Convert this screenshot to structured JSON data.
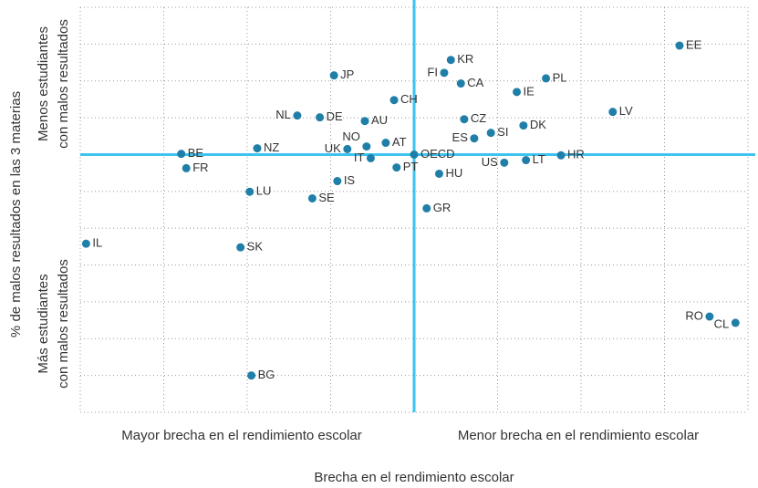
{
  "chart_data": {
    "type": "scatter",
    "xlabel": "Brecha en el rendimiento escolar",
    "x_left_note": "Mayor brecha en el rendimiento escolar",
    "x_right_note": "Menor brecha en el rendimiento escolar",
    "ylabel": "% de malos resultados en las 3 materias",
    "y_top_note": [
      "Menos estudiantes",
      "con malos resultados"
    ],
    "y_bottom_note": [
      "Más estudiantes",
      "con malos resultados"
    ],
    "labels": [
      "EE",
      "KR",
      "FI",
      "CA",
      "PL",
      "JP",
      "IE",
      "CH",
      "LV",
      "NL",
      "DE",
      "AU",
      "CZ",
      "DK",
      "SI",
      "ES",
      "NO",
      "AT",
      "NZ",
      "UK",
      "BE",
      "OECD",
      "HR",
      "IT",
      "LT",
      "US",
      "PT",
      "FR",
      "HU",
      "IS",
      "LU",
      "SE",
      "GR",
      "IL",
      "SK",
      "RO",
      "CL",
      "BG"
    ],
    "x": [
      3.18,
      0.44,
      0.36,
      0.56,
      1.58,
      -0.96,
      1.23,
      -0.24,
      2.38,
      -1.4,
      -1.13,
      -0.59,
      0.6,
      1.31,
      0.92,
      0.72,
      -0.57,
      -0.34,
      -1.88,
      -0.8,
      -2.79,
      0,
      1.76,
      -0.52,
      1.34,
      1.08,
      -0.21,
      -2.73,
      0.3,
      -0.92,
      -1.97,
      -1.22,
      0.15,
      -3.93,
      -2.08,
      3.54,
      3.85,
      -1.95
    ],
    "y": [
      2.96,
      2.57,
      2.22,
      1.93,
      2.07,
      2.15,
      1.7,
      1.48,
      1.16,
      1.06,
      1.01,
      0.91,
      0.96,
      0.79,
      0.59,
      0.44,
      0.22,
      0.32,
      0.17,
      0.15,
      0.02,
      0,
      -0.02,
      -0.1,
      -0.15,
      -0.22,
      -0.35,
      -0.37,
      -0.52,
      -0.72,
      -1.01,
      -1.19,
      -1.46,
      -2.42,
      -2.52,
      -4.4,
      -4.57,
      -6.0
    ],
    "color": "#1f7fa8",
    "ref_color": "#3ec3ee",
    "xlim": [
      -4,
      4
    ],
    "ylim": [
      -7,
      4
    ],
    "xticks": [
      -3,
      -2,
      -1,
      1,
      2,
      3
    ],
    "yticks": [
      -6,
      -5,
      -4,
      -3,
      -2,
      -1,
      1,
      2,
      3,
      4
    ],
    "ref_x": 0,
    "ref_y": 0,
    "grid": true
  }
}
